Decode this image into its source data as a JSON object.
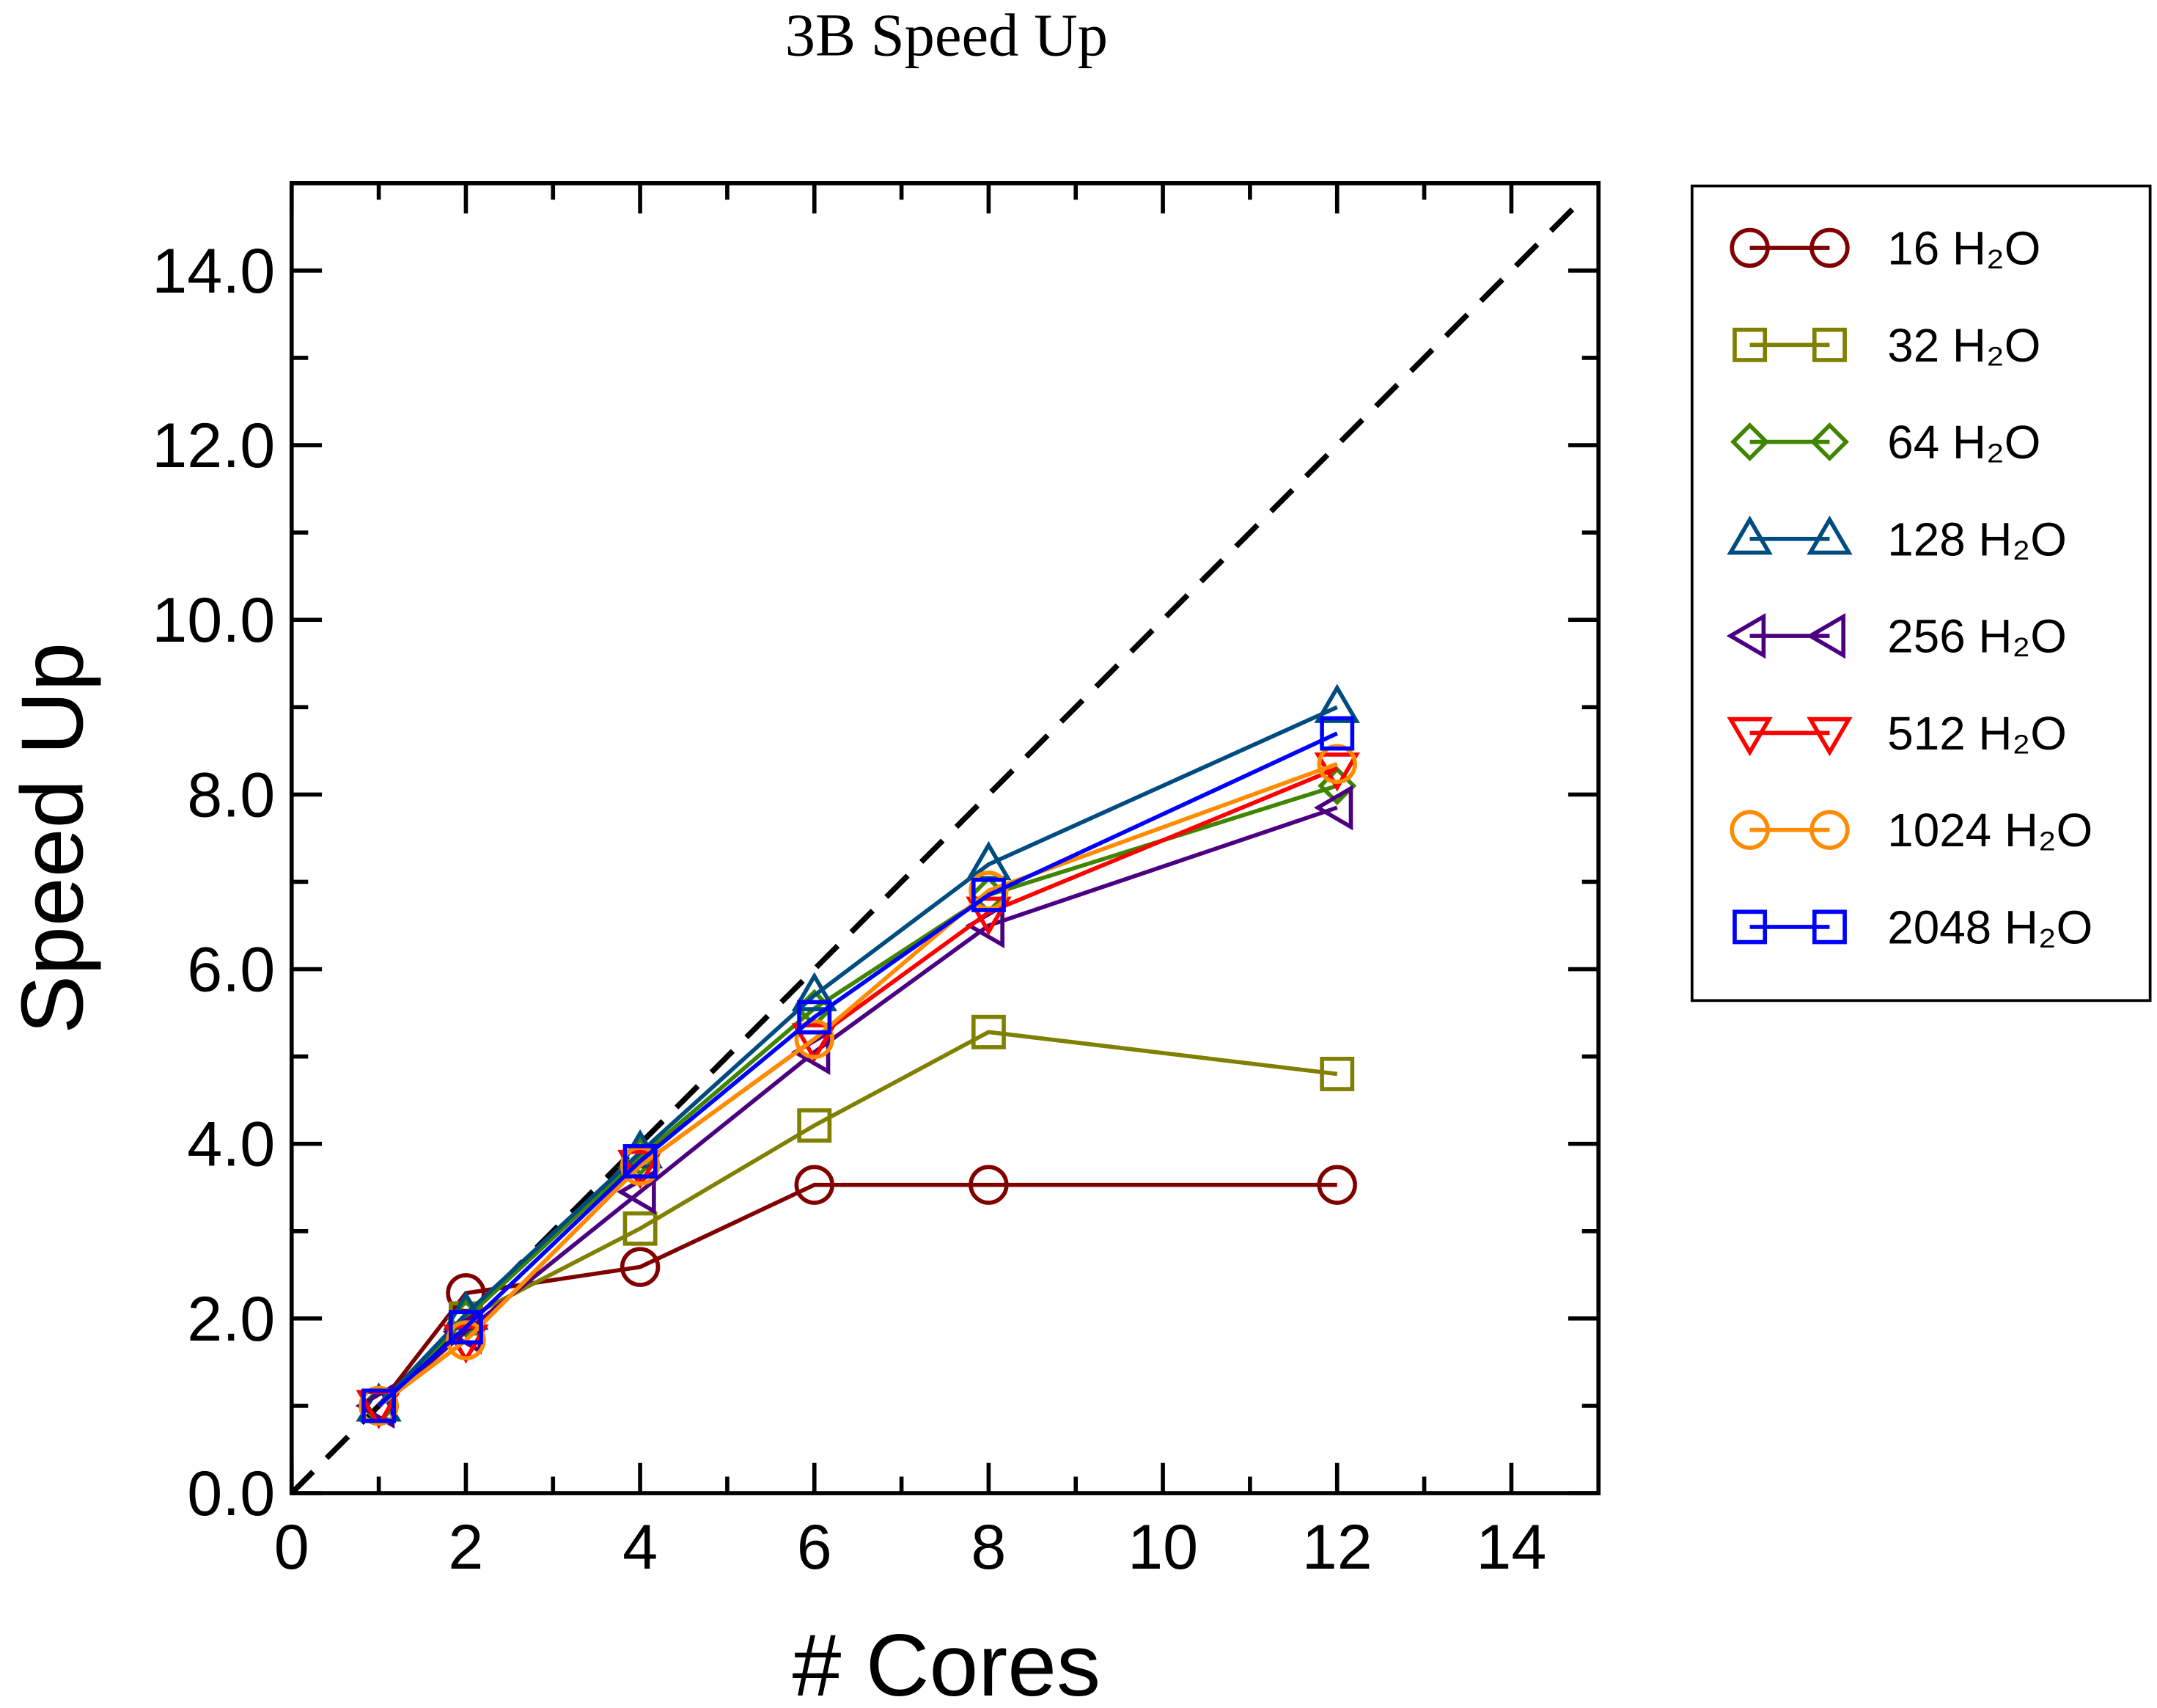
{
  "chart_data": {
    "type": "line",
    "title": "3B Speed Up",
    "xlabel": "# Cores",
    "ylabel": "Speed Up",
    "xlim": [
      0,
      15
    ],
    "ylim": [
      0,
      15
    ],
    "xticks": [
      "0",
      "2",
      "4",
      "6",
      "8",
      "10",
      "12",
      "14"
    ],
    "yticks": [
      "0.0",
      "2.0",
      "4.0",
      "6.0",
      "8.0",
      "10.0",
      "12.0",
      "14.0"
    ],
    "grid": false,
    "legend_position": "outside-right",
    "reference_line": {
      "style": "dashed",
      "color": "#000000",
      "x": [
        0,
        14.85
      ],
      "y": [
        0,
        14.85
      ]
    },
    "x": [
      1,
      2,
      4,
      6,
      8,
      12
    ],
    "series": [
      {
        "name": "16 H₂O",
        "color": "#800000",
        "marker": "circle",
        "values": [
          1.0,
          2.29,
          2.59,
          3.53,
          3.53,
          3.53
        ]
      },
      {
        "name": "32 H₂O",
        "color": "#808000",
        "marker": "square",
        "values": [
          1.0,
          2.0,
          3.03,
          4.21,
          5.28,
          4.8
        ]
      },
      {
        "name": "64 H₂O",
        "color": "#3f8500",
        "marker": "diamond",
        "values": [
          1.0,
          2.0,
          3.85,
          5.55,
          6.85,
          8.1
        ]
      },
      {
        "name": "128 H₂O",
        "color": "#004c80",
        "marker": "triangle-up",
        "values": [
          1.0,
          2.05,
          3.9,
          5.7,
          7.2,
          9.0
        ]
      },
      {
        "name": "256 H₂O",
        "color": "#4b0082",
        "marker": "triangle-left",
        "values": [
          1.0,
          1.85,
          3.45,
          5.05,
          6.5,
          7.85
        ]
      },
      {
        "name": "512 H₂O",
        "color": "#ff0000",
        "marker": "triangle-down",
        "values": [
          1.0,
          1.75,
          3.75,
          5.2,
          6.65,
          8.3
        ]
      },
      {
        "name": "1024 H₂O",
        "color": "#ff8c00",
        "marker": "circle",
        "values": [
          1.0,
          1.75,
          3.75,
          5.2,
          6.9,
          8.35
        ]
      },
      {
        "name": "2048 H₂O",
        "color": "#0000ff",
        "marker": "square",
        "values": [
          1.0,
          1.9,
          3.8,
          5.45,
          6.85,
          8.7
        ]
      }
    ]
  }
}
